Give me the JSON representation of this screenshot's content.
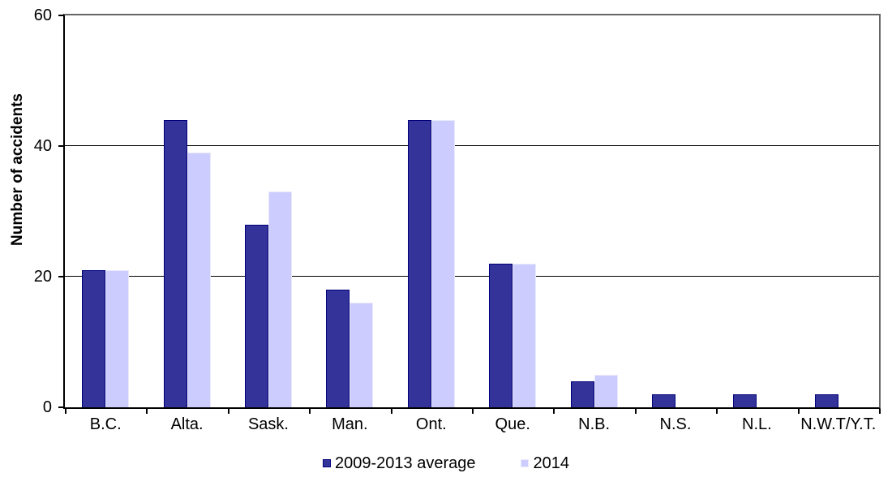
{
  "chart_data": {
    "type": "bar",
    "title": "",
    "ylabel": "Number of accidents",
    "xlabel": "",
    "ylim": [
      0,
      60
    ],
    "yticks": [
      0,
      20,
      40,
      60
    ],
    "gridlines": [
      20,
      40
    ],
    "grid_on": true,
    "legend_position": "bottom",
    "categories": [
      "B.C.",
      "Alta.",
      "Sask.",
      "Man.",
      "Ont.",
      "Que.",
      "N.B.",
      "N.S.",
      "N.L.",
      "N.W.T/Y.T."
    ],
    "series": [
      {
        "name": "2009-2013 average",
        "fill": "#333399",
        "stroke": "#00007B",
        "values": [
          21,
          44,
          28,
          18,
          44,
          22,
          4,
          2,
          2,
          2
        ]
      },
      {
        "name": "2014",
        "fill": "#CCCCFF",
        "stroke": "#E9E9FB",
        "values": [
          21,
          39,
          33,
          16,
          44,
          22,
          5,
          0,
          0,
          0
        ]
      }
    ],
    "colors": {
      "axis": "#000000",
      "plot_frame": "#666666",
      "gridline": "#000000",
      "background": "#FFFFFF"
    }
  }
}
